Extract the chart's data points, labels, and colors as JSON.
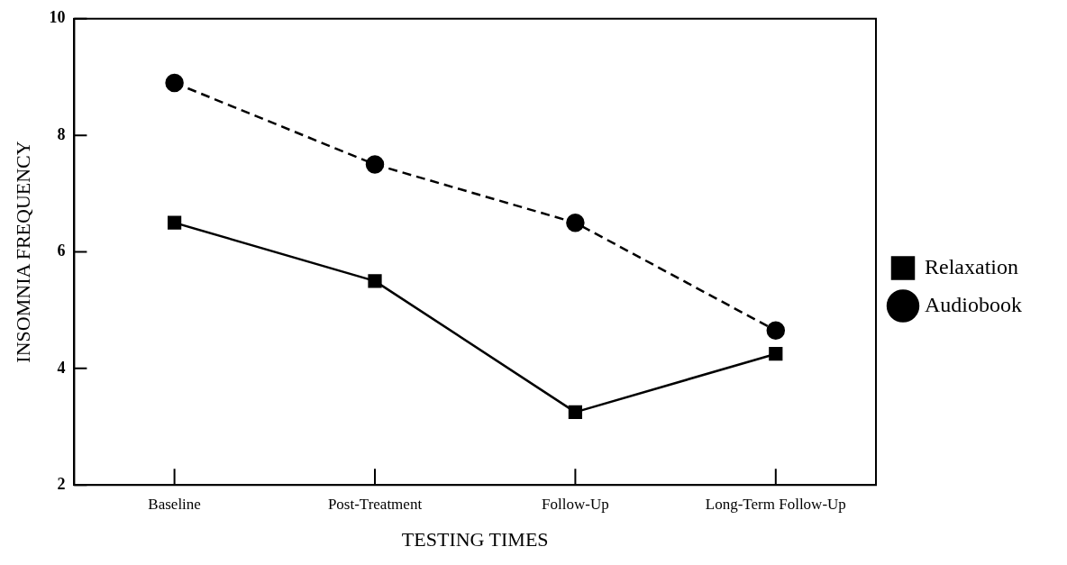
{
  "chart_data": {
    "type": "line",
    "xlabel": "TESTING TIMES",
    "ylabel": "INSOMNIA FREQUENCY",
    "categories": [
      "Baseline",
      "Post-Treatment",
      "Follow-Up",
      "Long-Term Follow-Up"
    ],
    "series": [
      {
        "name": "Relaxation",
        "color": "#000000",
        "marker": "square",
        "line_style": "solid",
        "values": [
          6.5,
          5.5,
          3.25,
          4.25
        ]
      },
      {
        "name": "Audiobook",
        "color": "#000000",
        "marker": "circle",
        "line_style": "dashed",
        "values": [
          8.9,
          7.5,
          6.5,
          4.65
        ]
      }
    ],
    "ylim": [
      2,
      10
    ],
    "yticks": [
      2,
      4,
      6,
      8,
      10
    ],
    "grid": false,
    "legend": "right"
  }
}
